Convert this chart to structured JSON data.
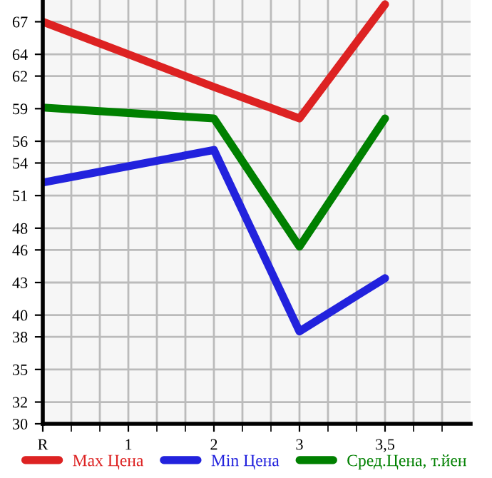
{
  "chart_data": {
    "type": "line",
    "categories": [
      "R",
      "1",
      "2",
      "3",
      "3,5"
    ],
    "series": [
      {
        "name": "Max Цена",
        "color": "#dd2222",
        "values": [
          67,
          64,
          61,
          58.1,
          68.6
        ]
      },
      {
        "name": "Min Цена",
        "color": "#2222dd",
        "values": [
          52.2,
          53.7,
          55.2,
          38.5,
          43.4
        ]
      },
      {
        "name": "Сред.Цена, т.йен",
        "color": "#008000",
        "values": [
          59.1,
          58.6,
          58.1,
          46.3,
          58.1
        ]
      }
    ],
    "ylim": [
      30,
      69
    ],
    "yticks": [
      30,
      32,
      35,
      38,
      40,
      43,
      46,
      48,
      51,
      54,
      56,
      59,
      62,
      64,
      67
    ],
    "grid": true,
    "legend": "bottom",
    "marker": "none",
    "line_style": "solid"
  }
}
